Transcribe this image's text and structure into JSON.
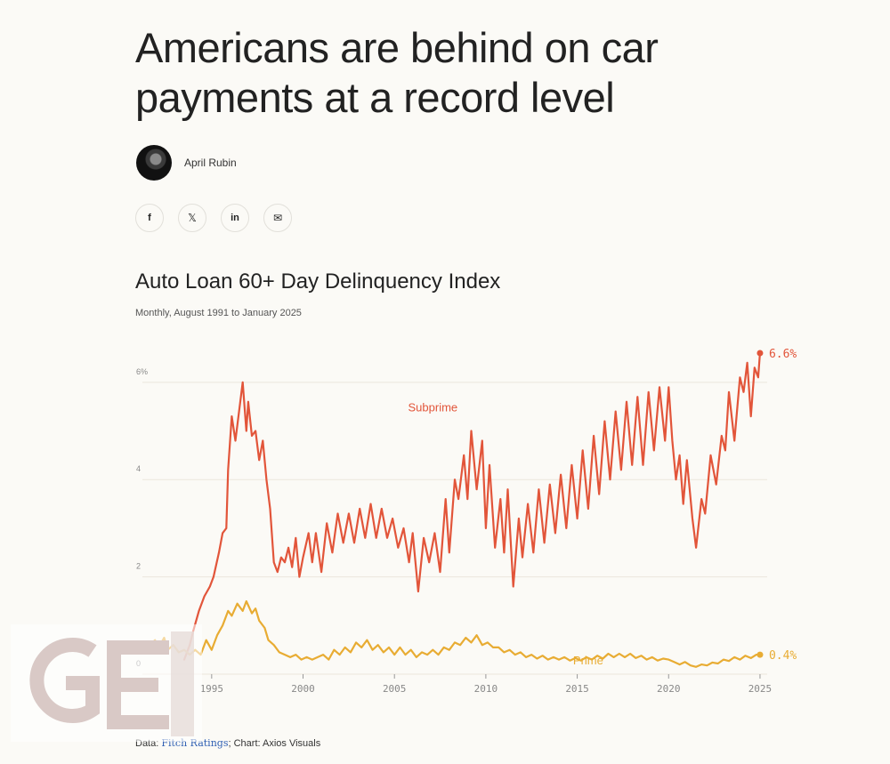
{
  "headline": {
    "line1": "Americans are behind on car",
    "line2": "payments at a record level"
  },
  "author": {
    "name": "April Rubin"
  },
  "share": {
    "facebook": "f",
    "x": "𝕏",
    "linkedin": "in",
    "email": "✉"
  },
  "chart": {
    "title": "Auto Loan 60+ Day Delinquency Index",
    "subtitle": "Monthly, August 1991 to January 2025"
  },
  "source": {
    "prefix": "Data: ",
    "link": "Fitch Ratings",
    "suffix": "; Chart: Axios Visuals"
  },
  "watermark": {
    "text": "GE"
  },
  "colors": {
    "subprime": "#e2553a",
    "prime": "#e8ac33",
    "grid": "#ebe6dc",
    "axis_text": "#888888"
  },
  "chart_data": {
    "type": "line",
    "title": "Auto Loan 60+ Day Delinquency Index",
    "subtitle": "Monthly, August 1991 to January 2025",
    "xlim": [
      1991.6,
      2025.1
    ],
    "ylim": [
      0,
      6.6
    ],
    "x_ticks": [
      1995,
      2000,
      2005,
      2010,
      2015,
      2020,
      2025
    ],
    "x_tick_labels": [
      "1995",
      "2000",
      "2005",
      "2010",
      "2015",
      "2020",
      "2025"
    ],
    "y_ticks": [
      0,
      2,
      4,
      6
    ],
    "y_tick_labels": [
      "0",
      "2",
      "4",
      "6%"
    ],
    "series": [
      {
        "name": "Subprime",
        "color": "#e2553a",
        "end_label": "6.6%",
        "points": [
          [
            1993.5,
            0.3
          ],
          [
            1993.8,
            0.6
          ],
          [
            1994.0,
            0.9
          ],
          [
            1994.3,
            1.3
          ],
          [
            1994.6,
            1.6
          ],
          [
            1994.9,
            1.8
          ],
          [
            1995.1,
            2.0
          ],
          [
            1995.4,
            2.5
          ],
          [
            1995.6,
            2.9
          ],
          [
            1995.8,
            3.0
          ],
          [
            1995.9,
            4.2
          ],
          [
            1996.1,
            5.3
          ],
          [
            1996.3,
            4.8
          ],
          [
            1996.5,
            5.4
          ],
          [
            1996.7,
            6.0
          ],
          [
            1996.9,
            5.0
          ],
          [
            1997.0,
            5.6
          ],
          [
            1997.2,
            4.9
          ],
          [
            1997.4,
            5.0
          ],
          [
            1997.6,
            4.4
          ],
          [
            1997.8,
            4.8
          ],
          [
            1998.0,
            4.0
          ],
          [
            1998.2,
            3.4
          ],
          [
            1998.4,
            2.3
          ],
          [
            1998.6,
            2.1
          ],
          [
            1998.8,
            2.4
          ],
          [
            1999.0,
            2.3
          ],
          [
            1999.2,
            2.6
          ],
          [
            1999.4,
            2.2
          ],
          [
            1999.6,
            2.8
          ],
          [
            1999.8,
            2.0
          ],
          [
            2000.0,
            2.4
          ],
          [
            2000.3,
            2.9
          ],
          [
            2000.5,
            2.3
          ],
          [
            2000.7,
            2.9
          ],
          [
            2001.0,
            2.1
          ],
          [
            2001.3,
            3.1
          ],
          [
            2001.6,
            2.5
          ],
          [
            2001.9,
            3.3
          ],
          [
            2002.2,
            2.7
          ],
          [
            2002.5,
            3.3
          ],
          [
            2002.8,
            2.7
          ],
          [
            2003.1,
            3.4
          ],
          [
            2003.4,
            2.8
          ],
          [
            2003.7,
            3.5
          ],
          [
            2004.0,
            2.8
          ],
          [
            2004.3,
            3.4
          ],
          [
            2004.6,
            2.8
          ],
          [
            2004.9,
            3.2
          ],
          [
            2005.2,
            2.6
          ],
          [
            2005.5,
            3.0
          ],
          [
            2005.8,
            2.3
          ],
          [
            2006.0,
            2.9
          ],
          [
            2006.3,
            1.7
          ],
          [
            2006.6,
            2.8
          ],
          [
            2006.9,
            2.3
          ],
          [
            2007.2,
            2.9
          ],
          [
            2007.5,
            2.1
          ],
          [
            2007.8,
            3.6
          ],
          [
            2008.0,
            2.5
          ],
          [
            2008.3,
            4.0
          ],
          [
            2008.5,
            3.6
          ],
          [
            2008.8,
            4.5
          ],
          [
            2009.0,
            3.6
          ],
          [
            2009.2,
            5.0
          ],
          [
            2009.5,
            3.8
          ],
          [
            2009.8,
            4.8
          ],
          [
            2010.0,
            3.0
          ],
          [
            2010.2,
            4.3
          ],
          [
            2010.5,
            2.6
          ],
          [
            2010.8,
            3.6
          ],
          [
            2011.0,
            2.5
          ],
          [
            2011.2,
            3.8
          ],
          [
            2011.5,
            1.8
          ],
          [
            2011.8,
            3.2
          ],
          [
            2012.0,
            2.4
          ],
          [
            2012.3,
            3.5
          ],
          [
            2012.6,
            2.5
          ],
          [
            2012.9,
            3.8
          ],
          [
            2013.2,
            2.7
          ],
          [
            2013.5,
            3.9
          ],
          [
            2013.8,
            2.9
          ],
          [
            2014.1,
            4.1
          ],
          [
            2014.4,
            3.0
          ],
          [
            2014.7,
            4.3
          ],
          [
            2015.0,
            3.2
          ],
          [
            2015.3,
            4.6
          ],
          [
            2015.6,
            3.4
          ],
          [
            2015.9,
            4.9
          ],
          [
            2016.2,
            3.7
          ],
          [
            2016.5,
            5.2
          ],
          [
            2016.8,
            4.0
          ],
          [
            2017.1,
            5.4
          ],
          [
            2017.4,
            4.2
          ],
          [
            2017.7,
            5.6
          ],
          [
            2018.0,
            4.3
          ],
          [
            2018.3,
            5.7
          ],
          [
            2018.6,
            4.3
          ],
          [
            2018.9,
            5.8
          ],
          [
            2019.2,
            4.6
          ],
          [
            2019.5,
            5.9
          ],
          [
            2019.8,
            4.8
          ],
          [
            2020.0,
            5.9
          ],
          [
            2020.2,
            4.8
          ],
          [
            2020.4,
            4.0
          ],
          [
            2020.6,
            4.5
          ],
          [
            2020.8,
            3.5
          ],
          [
            2021.0,
            4.4
          ],
          [
            2021.3,
            3.2
          ],
          [
            2021.5,
            2.6
          ],
          [
            2021.8,
            3.6
          ],
          [
            2022.0,
            3.3
          ],
          [
            2022.3,
            4.5
          ],
          [
            2022.6,
            3.9
          ],
          [
            2022.9,
            4.9
          ],
          [
            2023.1,
            4.6
          ],
          [
            2023.3,
            5.8
          ],
          [
            2023.6,
            4.8
          ],
          [
            2023.9,
            6.1
          ],
          [
            2024.1,
            5.8
          ],
          [
            2024.3,
            6.4
          ],
          [
            2024.5,
            5.3
          ],
          [
            2024.7,
            6.3
          ],
          [
            2024.9,
            6.1
          ],
          [
            2025.0,
            6.6
          ]
        ]
      },
      {
        "name": "Prime",
        "color": "#e8ac33",
        "end_label": "0.4%",
        "points": [
          [
            1991.6,
            0.6
          ],
          [
            1991.9,
            0.7
          ],
          [
            1992.1,
            0.55
          ],
          [
            1992.4,
            0.75
          ],
          [
            1992.6,
            0.5
          ],
          [
            1992.9,
            0.6
          ],
          [
            1993.2,
            0.45
          ],
          [
            1993.5,
            0.5
          ],
          [
            1993.8,
            0.4
          ],
          [
            1994.1,
            0.5
          ],
          [
            1994.4,
            0.4
          ],
          [
            1994.7,
            0.7
          ],
          [
            1995.0,
            0.5
          ],
          [
            1995.3,
            0.8
          ],
          [
            1995.6,
            1.0
          ],
          [
            1995.9,
            1.3
          ],
          [
            1996.1,
            1.2
          ],
          [
            1996.4,
            1.45
          ],
          [
            1996.7,
            1.3
          ],
          [
            1996.9,
            1.5
          ],
          [
            1997.2,
            1.25
          ],
          [
            1997.4,
            1.35
          ],
          [
            1997.6,
            1.1
          ],
          [
            1997.9,
            0.95
          ],
          [
            1998.1,
            0.7
          ],
          [
            1998.4,
            0.6
          ],
          [
            1998.7,
            0.45
          ],
          [
            1999.0,
            0.4
          ],
          [
            1999.3,
            0.35
          ],
          [
            1999.6,
            0.4
          ],
          [
            1999.9,
            0.3
          ],
          [
            2000.2,
            0.35
          ],
          [
            2000.5,
            0.3
          ],
          [
            2000.8,
            0.35
          ],
          [
            2001.1,
            0.4
          ],
          [
            2001.4,
            0.3
          ],
          [
            2001.7,
            0.5
          ],
          [
            2002.0,
            0.4
          ],
          [
            2002.3,
            0.55
          ],
          [
            2002.6,
            0.45
          ],
          [
            2002.9,
            0.65
          ],
          [
            2003.2,
            0.55
          ],
          [
            2003.5,
            0.7
          ],
          [
            2003.8,
            0.5
          ],
          [
            2004.1,
            0.6
          ],
          [
            2004.4,
            0.45
          ],
          [
            2004.7,
            0.55
          ],
          [
            2005.0,
            0.4
          ],
          [
            2005.3,
            0.55
          ],
          [
            2005.6,
            0.4
          ],
          [
            2005.9,
            0.5
          ],
          [
            2006.2,
            0.35
          ],
          [
            2006.5,
            0.45
          ],
          [
            2006.8,
            0.4
          ],
          [
            2007.1,
            0.5
          ],
          [
            2007.4,
            0.4
          ],
          [
            2007.7,
            0.55
          ],
          [
            2008.0,
            0.5
          ],
          [
            2008.3,
            0.65
          ],
          [
            2008.6,
            0.6
          ],
          [
            2008.9,
            0.75
          ],
          [
            2009.2,
            0.65
          ],
          [
            2009.5,
            0.8
          ],
          [
            2009.8,
            0.6
          ],
          [
            2010.1,
            0.65
          ],
          [
            2010.4,
            0.55
          ],
          [
            2010.7,
            0.55
          ],
          [
            2011.0,
            0.45
          ],
          [
            2011.3,
            0.5
          ],
          [
            2011.6,
            0.4
          ],
          [
            2011.9,
            0.45
          ],
          [
            2012.2,
            0.35
          ],
          [
            2012.5,
            0.4
          ],
          [
            2012.8,
            0.32
          ],
          [
            2013.1,
            0.38
          ],
          [
            2013.4,
            0.3
          ],
          [
            2013.7,
            0.35
          ],
          [
            2014.0,
            0.3
          ],
          [
            2014.3,
            0.35
          ],
          [
            2014.6,
            0.28
          ],
          [
            2014.9,
            0.33
          ],
          [
            2015.2,
            0.28
          ],
          [
            2015.5,
            0.35
          ],
          [
            2015.8,
            0.3
          ],
          [
            2016.1,
            0.38
          ],
          [
            2016.4,
            0.32
          ],
          [
            2016.7,
            0.42
          ],
          [
            2017.0,
            0.35
          ],
          [
            2017.3,
            0.42
          ],
          [
            2017.6,
            0.35
          ],
          [
            2017.9,
            0.42
          ],
          [
            2018.2,
            0.33
          ],
          [
            2018.5,
            0.38
          ],
          [
            2018.8,
            0.3
          ],
          [
            2019.1,
            0.35
          ],
          [
            2019.4,
            0.28
          ],
          [
            2019.7,
            0.32
          ],
          [
            2020.0,
            0.3
          ],
          [
            2020.3,
            0.25
          ],
          [
            2020.6,
            0.2
          ],
          [
            2020.9,
            0.25
          ],
          [
            2021.2,
            0.18
          ],
          [
            2021.5,
            0.15
          ],
          [
            2021.8,
            0.2
          ],
          [
            2022.1,
            0.18
          ],
          [
            2022.4,
            0.24
          ],
          [
            2022.7,
            0.22
          ],
          [
            2023.0,
            0.3
          ],
          [
            2023.3,
            0.27
          ],
          [
            2023.6,
            0.35
          ],
          [
            2023.9,
            0.3
          ],
          [
            2024.2,
            0.38
          ],
          [
            2024.5,
            0.33
          ],
          [
            2024.8,
            0.4
          ],
          [
            2025.0,
            0.4
          ]
        ]
      }
    ],
    "annotations": [
      {
        "text": "Subprime",
        "x": 2007.1,
        "y": 5.4,
        "series": "Subprime"
      },
      {
        "text": "Prime",
        "x": 2015.6,
        "y": 0.2,
        "series": "Prime"
      }
    ]
  }
}
